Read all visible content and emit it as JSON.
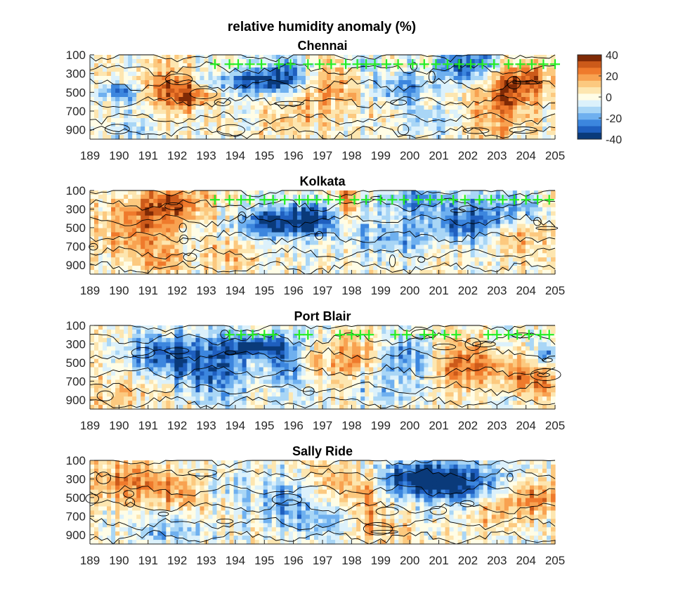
{
  "figure_title": "relative humidity anomaly (%)",
  "chart_data": [
    {
      "type": "heatmap",
      "title": "Chennai",
      "x_tick_labels": [
        "189",
        "190",
        "191",
        "192",
        "193",
        "194",
        "195",
        "196",
        "197",
        "198",
        "199",
        "200",
        "201",
        "202",
        "203",
        "204",
        "205"
      ],
      "y_tick_labels": [
        "100",
        "300",
        "500",
        "700",
        "900"
      ],
      "y_ticks": [
        100,
        300,
        500,
        700,
        900
      ],
      "ylim": [
        1000,
        100
      ],
      "xlim": [
        189,
        205
      ],
      "y_reversed": true,
      "marker_level": 200,
      "marker_x": [
        193.3,
        193.8,
        194.1,
        194.5,
        194.9,
        195.5,
        195.9,
        196.5,
        196.9,
        197.3,
        197.8,
        198.2,
        198.5,
        198.8,
        199.2,
        199.6,
        200.1,
        200.5,
        200.9,
        201.3,
        201.7,
        202.1,
        202.5,
        202.9,
        203.4,
        203.8,
        204.2,
        204.6,
        205.0
      ]
    },
    {
      "type": "heatmap",
      "title": "Kolkata",
      "x_tick_labels": [
        "189",
        "190",
        "191",
        "192",
        "193",
        "194",
        "195",
        "196",
        "197",
        "198",
        "199",
        "200",
        "201",
        "202",
        "203",
        "204",
        "205"
      ],
      "y_tick_labels": [
        "100",
        "300",
        "500",
        "700",
        "900"
      ],
      "y_ticks": [
        100,
        300,
        500,
        700,
        900
      ],
      "ylim": [
        1000,
        100
      ],
      "xlim": [
        189,
        205
      ],
      "y_reversed": true,
      "marker_level": 200,
      "marker_x": [
        193.3,
        193.8,
        194.2,
        194.5,
        195.0,
        195.3,
        195.7,
        196.2,
        196.5,
        196.8,
        197.2,
        197.6,
        198.1,
        198.5,
        199.0,
        199.4,
        199.8,
        200.3,
        200.7,
        201.1,
        201.5,
        201.9,
        202.4,
        202.8,
        203.2,
        203.6,
        204.0,
        204.4,
        204.8
      ]
    },
    {
      "type": "heatmap",
      "title": "Port Blair",
      "x_tick_labels": [
        "189",
        "190",
        "191",
        "192",
        "193",
        "194",
        "195",
        "196",
        "197",
        "198",
        "199",
        "200",
        "201",
        "202",
        "203",
        "204",
        "205"
      ],
      "y_tick_labels": [
        "100",
        "300",
        "500",
        "700",
        "900"
      ],
      "y_ticks": [
        100,
        300,
        500,
        700,
        900
      ],
      "ylim": [
        1000,
        100
      ],
      "xlim": [
        189,
        205
      ],
      "y_reversed": true,
      "marker_level": 200,
      "marker_x": [
        193.8,
        194.2,
        194.6,
        195.0,
        195.3,
        196.2,
        196.5,
        197.6,
        198.0,
        198.3,
        198.6,
        199.5,
        199.9,
        200.5,
        200.8,
        201.2,
        201.6,
        202.7,
        203.0,
        203.4,
        203.7,
        204.1,
        204.5,
        204.8
      ]
    },
    {
      "type": "heatmap",
      "title": "Sally Ride",
      "x_tick_labels": [
        "189",
        "190",
        "191",
        "192",
        "193",
        "194",
        "195",
        "196",
        "197",
        "198",
        "199",
        "200",
        "201",
        "202",
        "203",
        "204",
        "205"
      ],
      "y_tick_labels": [
        "100",
        "300",
        "500",
        "700",
        "900"
      ],
      "y_ticks": [
        100,
        300,
        500,
        700,
        900
      ],
      "ylim": [
        1000,
        100
      ],
      "xlim": [
        189,
        205
      ],
      "y_reversed": true,
      "marker_x": []
    }
  ],
  "colorbar": {
    "tick_labels": [
      "40",
      "20",
      "0",
      "-20",
      "-40"
    ],
    "ticks": [
      40,
      20,
      0,
      -20,
      -40
    ],
    "range": [
      -40,
      40
    ],
    "colors": [
      "#0a3a7a",
      "#1f5fbf",
      "#3c86de",
      "#6fb0ef",
      "#a9d6f6",
      "#dcf1fb",
      "#fffde6",
      "#fde6b0",
      "#fcc97f",
      "#f8a251",
      "#ef7a2c",
      "#cc5a1a",
      "#7f2a06"
    ]
  },
  "colors": {
    "marker": "#22ee22",
    "contour": "#000000"
  }
}
